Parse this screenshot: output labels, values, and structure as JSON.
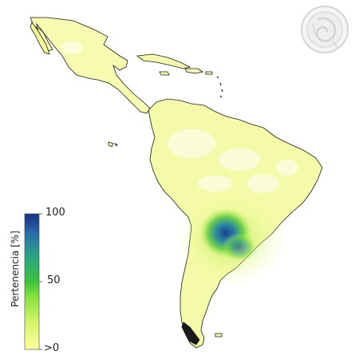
{
  "legend": {
    "title": "Pertenencia [%]",
    "ticks": [
      "100",
      "50",
      ">0"
    ],
    "colors": [
      "#ffff9e",
      "#d6f56b",
      "#7ee03d",
      "#3cc23c",
      "#2aa08a",
      "#2a6fa8",
      "#1a2f8a"
    ]
  },
  "logo": {
    "icon": "seal-emblem-icon"
  }
}
